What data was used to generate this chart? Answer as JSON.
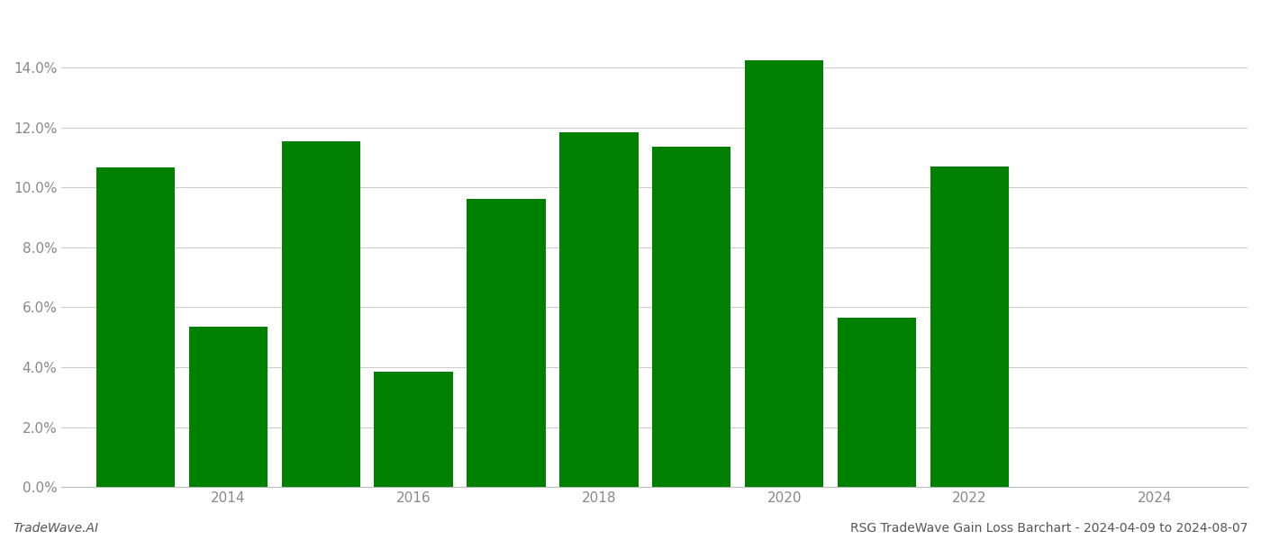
{
  "bar_positions": [
    0,
    1,
    2,
    3,
    4,
    5,
    6,
    7,
    8,
    9
  ],
  "values": [
    0.1065,
    0.0535,
    0.1155,
    0.0385,
    0.096,
    0.1185,
    0.1135,
    0.1425,
    0.0565,
    0.107
  ],
  "bar_color": "#008000",
  "background_color": "#ffffff",
  "grid_color": "#cccccc",
  "ylabel_color": "#888888",
  "xlabel_color": "#888888",
  "title_text": "RSG TradeWave Gain Loss Barchart - 2024-04-09 to 2024-08-07",
  "watermark_text": "TradeWave.AI",
  "ylim": [
    0,
    0.158
  ],
  "yticks": [
    0.0,
    0.02,
    0.04,
    0.06,
    0.08,
    0.1,
    0.12,
    0.14
  ],
  "xtick_positions": [
    1.0,
    3.0,
    5.0,
    7.0,
    9.0,
    11.0
  ],
  "xtick_labels": [
    "2014",
    "2016",
    "2018",
    "2020",
    "2022",
    "2024"
  ],
  "bar_width": 0.85,
  "xlim": [
    -0.8,
    12.0
  ]
}
